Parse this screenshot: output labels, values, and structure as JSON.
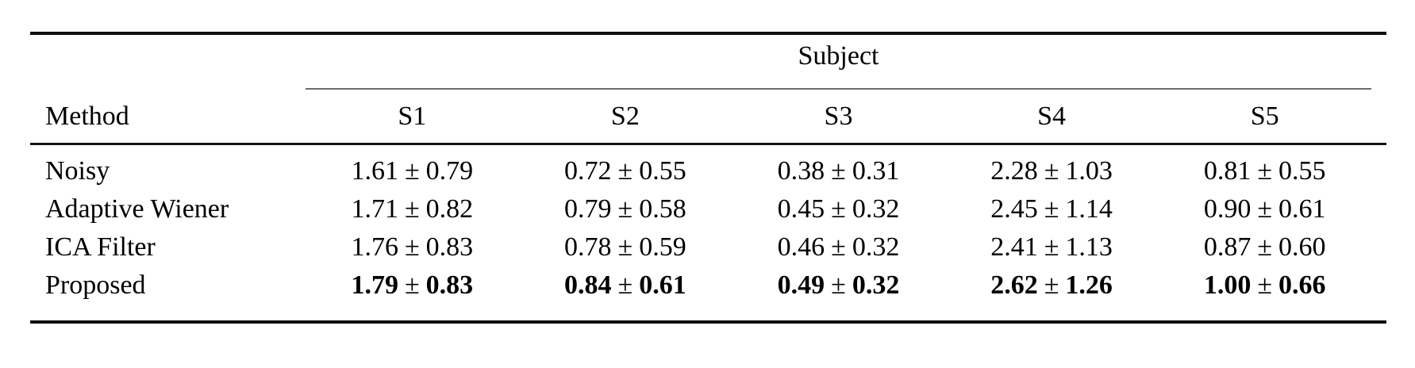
{
  "table": {
    "group_header": "Subject",
    "method_header": "Method",
    "pm": "±",
    "subjects": [
      "S1",
      "S2",
      "S3",
      "S4",
      "S5"
    ],
    "rows": [
      {
        "method": "Noisy",
        "emphasis": false,
        "cells": [
          {
            "m": "1.61",
            "s": "0.79"
          },
          {
            "m": "0.72",
            "s": "0.55"
          },
          {
            "m": "0.38",
            "s": "0.31"
          },
          {
            "m": "2.28",
            "s": "1.03"
          },
          {
            "m": "0.81",
            "s": "0.55"
          }
        ]
      },
      {
        "method": "Adaptive Wiener",
        "emphasis": false,
        "cells": [
          {
            "m": "1.71",
            "s": "0.82"
          },
          {
            "m": "0.79",
            "s": "0.58"
          },
          {
            "m": "0.45",
            "s": "0.32"
          },
          {
            "m": "2.45",
            "s": "1.14"
          },
          {
            "m": "0.90",
            "s": "0.61"
          }
        ]
      },
      {
        "method": "ICA Filter",
        "emphasis": false,
        "cells": [
          {
            "m": "1.76",
            "s": "0.83"
          },
          {
            "m": "0.78",
            "s": "0.59"
          },
          {
            "m": "0.46",
            "s": "0.32"
          },
          {
            "m": "2.41",
            "s": "1.13"
          },
          {
            "m": "0.87",
            "s": "0.60"
          }
        ]
      },
      {
        "method": "Proposed",
        "emphasis": true,
        "cells": [
          {
            "m": "1.79",
            "s": "0.83"
          },
          {
            "m": "0.84",
            "s": "0.61"
          },
          {
            "m": "0.49",
            "s": "0.32"
          },
          {
            "m": "2.62",
            "s": "1.26"
          },
          {
            "m": "1.00",
            "s": "0.66"
          }
        ]
      }
    ]
  }
}
